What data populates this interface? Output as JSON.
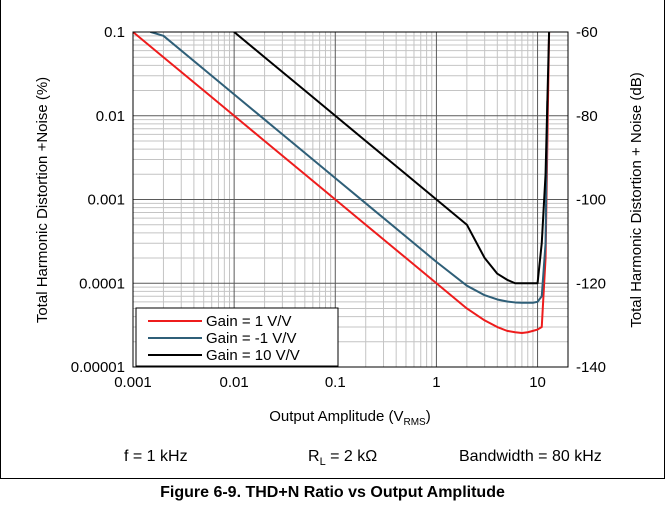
{
  "chart_data": {
    "type": "line",
    "title": "",
    "xlabel": "Output Amplitude (V",
    "xlabel_sub": "RMS",
    "xlabel_close": ")",
    "ylabel": "Total Harmonic Distortion +Noise (%)",
    "y2label": "Total Harmonic Distortion + Noise (dB)",
    "xscale": "log",
    "yscale": "log",
    "xlim": [
      0.001,
      20
    ],
    "ylim": [
      1e-05,
      0.1
    ],
    "y2lim": [
      -140,
      -60
    ],
    "grid": true,
    "legend_position": "bottom-left",
    "x_ticks": [
      {
        "value": 0.001,
        "label": "0.001"
      },
      {
        "value": 0.01,
        "label": "0.01"
      },
      {
        "value": 0.1,
        "label": "0.1"
      },
      {
        "value": 1,
        "label": "1"
      },
      {
        "value": 10,
        "label": "10"
      }
    ],
    "y_ticks": [
      {
        "value": 0.1,
        "label": "0.1"
      },
      {
        "value": 0.01,
        "label": "0.01"
      },
      {
        "value": 0.001,
        "label": "0.001"
      },
      {
        "value": 0.0001,
        "label": "0.0001"
      },
      {
        "value": 1e-05,
        "label": "0.00001"
      }
    ],
    "y2_ticks": [
      {
        "value": -60,
        "label": "-60"
      },
      {
        "value": -80,
        "label": "-80"
      },
      {
        "value": -100,
        "label": "-100"
      },
      {
        "value": -120,
        "label": "-120"
      },
      {
        "value": -140,
        "label": "-140"
      }
    ],
    "series": [
      {
        "name": "Gain = 1 V/V",
        "color": "#ee1c1c",
        "x": [
          0.001,
          0.002,
          0.005,
          0.01,
          0.02,
          0.05,
          0.1,
          0.2,
          0.5,
          1,
          2,
          3,
          4,
          5,
          6,
          7,
          8,
          9,
          10,
          11,
          12,
          13
        ],
        "y": [
          0.1,
          0.05,
          0.02,
          0.01,
          0.005,
          0.002,
          0.001,
          0.0005,
          0.0002,
          0.0001,
          5e-05,
          3.6e-05,
          3e-05,
          2.7e-05,
          2.6e-05,
          2.55e-05,
          2.6e-05,
          2.7e-05,
          2.8e-05,
          3e-05,
          0.0002,
          0.1
        ]
      },
      {
        "name": "Gain = -1 V/V",
        "color": "#2f5f78",
        "x": [
          0.0015,
          0.002,
          0.005,
          0.01,
          0.02,
          0.05,
          0.1,
          0.2,
          0.5,
          1,
          2,
          3,
          4,
          5,
          6,
          7,
          8,
          9,
          10,
          11,
          12,
          12.5
        ],
        "y": [
          0.1,
          0.09,
          0.036,
          0.018,
          0.009,
          0.0036,
          0.0018,
          0.0009,
          0.00036,
          0.00018,
          9.35e-05,
          7.2e-05,
          6.4e-05,
          6.05e-05,
          5.9e-05,
          5.85e-05,
          5.85e-05,
          5.85e-05,
          6e-05,
          7e-05,
          0.0003,
          0.015
        ]
      },
      {
        "name": "Gain = 10 V/V",
        "color": "#000000",
        "x": [
          0.01,
          0.02,
          0.05,
          0.1,
          0.2,
          0.5,
          1,
          2,
          3,
          4,
          5,
          6,
          7,
          8,
          9,
          10,
          11,
          12,
          13
        ],
        "y": [
          0.1,
          0.05,
          0.02,
          0.01,
          0.005,
          0.002,
          0.001,
          0.0005,
          0.0002,
          0.00013,
          0.00011,
          0.0001,
          0.0001,
          0.0001,
          0.0001,
          0.0001,
          0.0003,
          0.002,
          0.1
        ]
      }
    ]
  },
  "conditions": {
    "frequency": "f = 1 kHz",
    "load_prefix": "R",
    "load_sub": "L",
    "load_suffix": " = 2 kΩ",
    "bandwidth": "Bandwidth = 80 kHz"
  },
  "figure_title": "Figure 6-9. THD+N Ratio vs Output Amplitude"
}
